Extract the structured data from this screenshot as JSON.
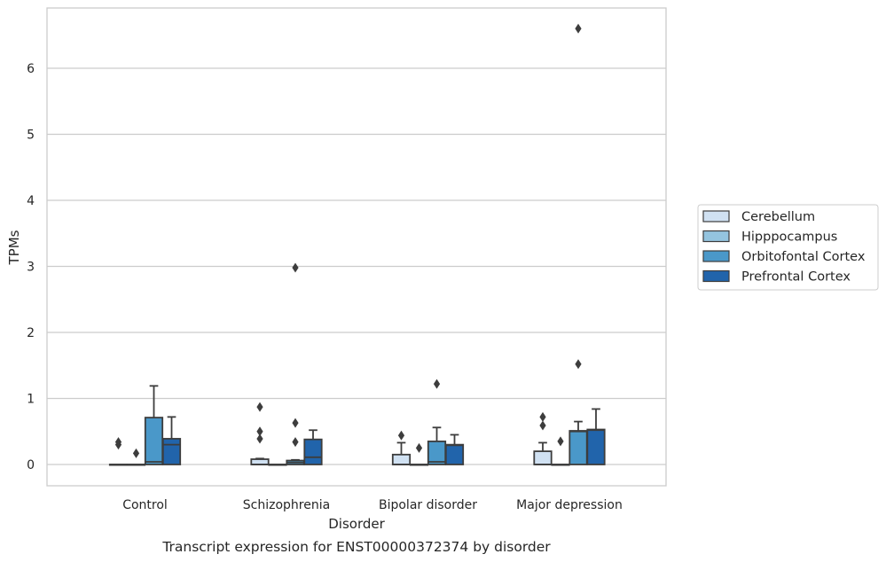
{
  "chart_data": {
    "type": "box",
    "title": "",
    "caption": "Transcript expression for ENST00000372374 by disorder",
    "xlabel": "Disorder",
    "ylabel": "TPMs",
    "ylim": [
      -0.32,
      6.92
    ],
    "yticks": [
      0,
      1,
      2,
      3,
      4,
      5,
      6
    ],
    "grid": true,
    "legend_position": "right",
    "categories": [
      "Control",
      "Schizophrenia",
      "Bipolar disorder",
      "Major depression"
    ],
    "series": [
      {
        "name": "Cerebellum",
        "color": "#d0e1f2",
        "boxes": [
          {
            "q1": 0,
            "median": 0,
            "q3": 0,
            "whislo": 0,
            "whishi": 0,
            "fliers": [
              0.3,
              0.34
            ]
          },
          {
            "q1": 0,
            "median": 0,
            "q3": 0.08,
            "whislo": 0,
            "whishi": 0.09,
            "fliers": [
              0.39,
              0.5,
              0.87
            ]
          },
          {
            "q1": 0,
            "median": 0,
            "q3": 0.15,
            "whislo": 0,
            "whishi": 0.33,
            "fliers": [
              0.44
            ]
          },
          {
            "q1": 0,
            "median": 0,
            "q3": 0.2,
            "whislo": 0,
            "whishi": 0.33,
            "fliers": [
              0.59,
              0.72
            ]
          }
        ]
      },
      {
        "name": "Hipppocampus",
        "color": "#94c4df",
        "boxes": [
          {
            "q1": 0,
            "median": 0,
            "q3": 0,
            "whislo": 0,
            "whishi": 0,
            "fliers": [
              0.17
            ]
          },
          {
            "q1": 0,
            "median": 0,
            "q3": 0,
            "whislo": 0,
            "whishi": 0,
            "fliers": []
          },
          {
            "q1": 0,
            "median": 0,
            "q3": 0,
            "whislo": 0,
            "whishi": 0,
            "fliers": [
              0.25
            ]
          },
          {
            "q1": 0,
            "median": 0,
            "q3": 0,
            "whislo": 0,
            "whishi": 0,
            "fliers": [
              0.35
            ]
          }
        ]
      },
      {
        "name": "Orbitofontal Cortex",
        "color": "#4a98c9",
        "boxes": [
          {
            "q1": 0,
            "median": 0.04,
            "q3": 0.71,
            "whislo": 0,
            "whishi": 1.19,
            "fliers": []
          },
          {
            "q1": 0,
            "median": 0.03,
            "q3": 0.06,
            "whislo": 0,
            "whishi": 0.07,
            "fliers": [
              0.34,
              0.63,
              2.98
            ]
          },
          {
            "q1": 0,
            "median": 0.04,
            "q3": 0.35,
            "whislo": 0,
            "whishi": 0.56,
            "fliers": [
              1.22
            ]
          },
          {
            "q1": 0,
            "median": 0.5,
            "q3": 0.51,
            "whislo": 0,
            "whishi": 0.65,
            "fliers": [
              1.52,
              6.6
            ]
          }
        ]
      },
      {
        "name": "Prefrontal Cortex",
        "color": "#2164ab",
        "boxes": [
          {
            "q1": 0,
            "median": 0.3,
            "q3": 0.39,
            "whislo": 0,
            "whishi": 0.72,
            "fliers": []
          },
          {
            "q1": 0,
            "median": 0.11,
            "q3": 0.38,
            "whislo": 0,
            "whishi": 0.52,
            "fliers": []
          },
          {
            "q1": 0,
            "median": 0.29,
            "q3": 0.3,
            "whislo": 0,
            "whishi": 0.45,
            "fliers": []
          },
          {
            "q1": 0,
            "median": 0.52,
            "q3": 0.53,
            "whislo": 0,
            "whishi": 0.84,
            "fliers": []
          }
        ]
      }
    ]
  }
}
